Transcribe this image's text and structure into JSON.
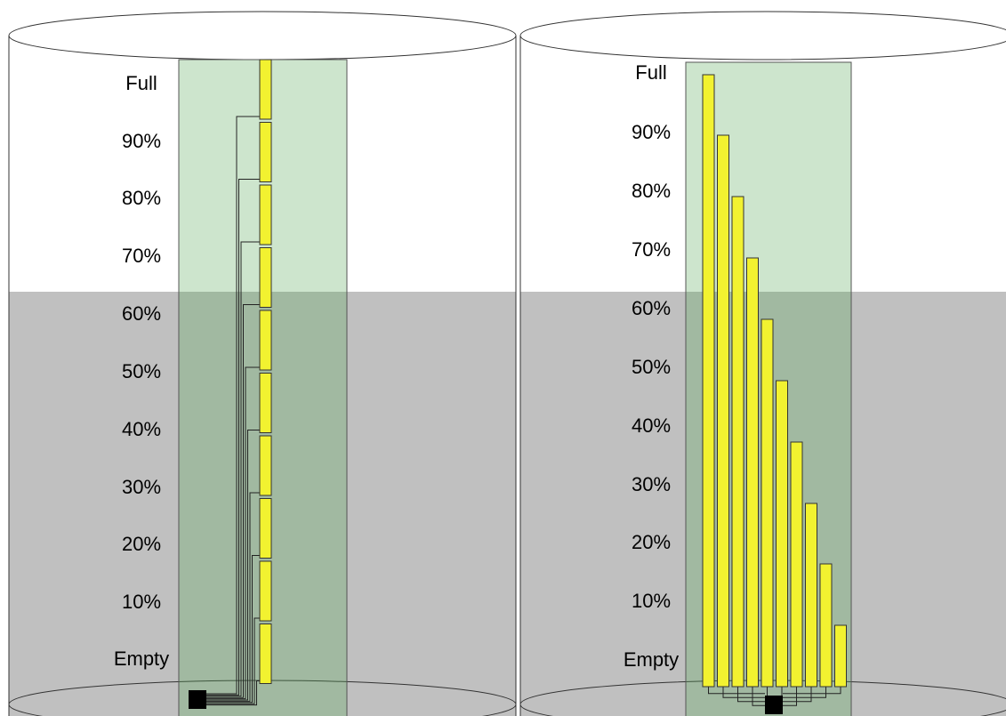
{
  "left": {
    "labels": [
      "Full",
      "90%",
      "80%",
      "70%",
      "60%",
      "50%",
      "40%",
      "30%",
      "20%",
      "10%",
      "Empty"
    ]
  },
  "right": {
    "labels": [
      "Full",
      "90%",
      "80%",
      "70%",
      "60%",
      "50%",
      "40%",
      "30%",
      "20%",
      "10%",
      "Empty"
    ]
  }
}
